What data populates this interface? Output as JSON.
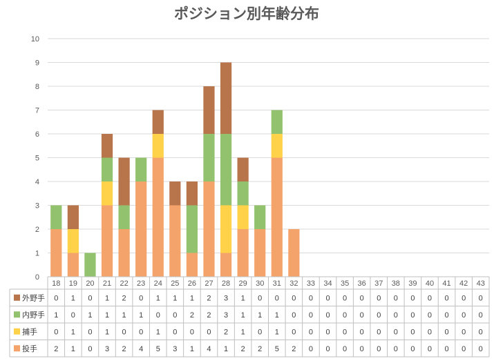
{
  "chart_data": {
    "type": "bar",
    "stacked": true,
    "title": "ポジション別年齢分布",
    "xlabel": "",
    "ylabel": "",
    "ylim": [
      0,
      10
    ],
    "yticks": [
      0,
      1,
      2,
      3,
      4,
      5,
      6,
      7,
      8,
      9,
      10
    ],
    "grid": true,
    "legend": "data-table",
    "categories": [
      "18",
      "19",
      "20",
      "21",
      "22",
      "23",
      "24",
      "25",
      "26",
      "27",
      "28",
      "29",
      "30",
      "31",
      "32",
      "33",
      "34",
      "35",
      "36",
      "37",
      "38",
      "39",
      "40",
      "41",
      "42",
      "43"
    ],
    "series": [
      {
        "name": "投手",
        "color": "#f4a46b",
        "values": [
          2,
          1,
          0,
          3,
          2,
          4,
          5,
          3,
          1,
          4,
          1,
          2,
          2,
          5,
          2,
          0,
          0,
          0,
          0,
          0,
          0,
          0,
          0,
          0,
          0,
          0
        ]
      },
      {
        "name": "捕手",
        "color": "#ffd24a",
        "values": [
          0,
          1,
          0,
          1,
          0,
          0,
          1,
          0,
          0,
          0,
          2,
          1,
          0,
          1,
          0,
          0,
          0,
          0,
          0,
          0,
          0,
          0,
          0,
          0,
          0,
          0
        ]
      },
      {
        "name": "内野手",
        "color": "#92c26e",
        "values": [
          1,
          0,
          1,
          1,
          1,
          1,
          0,
          0,
          2,
          2,
          3,
          1,
          1,
          1,
          0,
          0,
          0,
          0,
          0,
          0,
          0,
          0,
          0,
          0,
          0,
          0
        ]
      },
      {
        "name": "外野手",
        "color": "#b8744a",
        "values": [
          0,
          1,
          0,
          1,
          2,
          0,
          1,
          1,
          1,
          2,
          3,
          1,
          0,
          0,
          0,
          0,
          0,
          0,
          0,
          0,
          0,
          0,
          0,
          0,
          0,
          0
        ]
      }
    ],
    "table_row_order": [
      "外野手",
      "内野手",
      "捕手",
      "投手"
    ]
  }
}
